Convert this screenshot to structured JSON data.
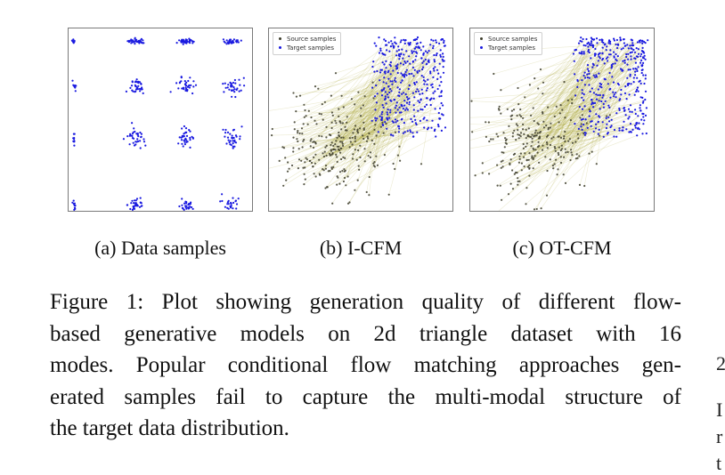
{
  "colors": {
    "source": "#3d3d2b",
    "target": "#1a1ae0",
    "path": "#a8a233",
    "border": "#7a7a7a"
  },
  "legend": {
    "source": "Source samples",
    "target": "Target samples"
  },
  "subcaptions": {
    "a": "(a) Data samples",
    "b": "(b) I-CFM",
    "c": "(c) OT-CFM"
  },
  "caption": {
    "lines": [
      "Figure 1: Plot showing generation quality of different flow-",
      "based generative models on 2d triangle dataset with 16",
      "modes. Popular conditional flow matching approaches gen-",
      "erated samples fail to capture the multi-modal structure of",
      "the target data distribution."
    ]
  },
  "edge_glyphs": [
    "2",
    "I",
    "r",
    "t"
  ],
  "chart_data": [
    {
      "type": "scatter",
      "panel": "a",
      "series": [
        {
          "name": "",
          "mode_grid": {
            "columns": [
              0.03,
              0.37,
              0.64,
              0.89
            ],
            "rows": [
              0.93,
              0.68,
              0.4,
              0.03
            ]
          },
          "modes": [
            [
              1,
              1,
              1,
              1
            ],
            [
              1,
              1,
              1,
              1
            ],
            [
              1,
              1,
              1,
              1
            ],
            [
              1,
              1,
              1,
              1
            ]
          ]
        }
      ]
    },
    {
      "type": "scatter",
      "panel": "b",
      "legend_position": "top-left",
      "series": [
        {
          "name": "Source samples",
          "distribution": "gaussian cloud, lower-left/center"
        },
        {
          "name": "Target samples",
          "distribution": "blue cluster, top-right"
        }
      ]
    },
    {
      "type": "scatter",
      "panel": "c",
      "legend_position": "top-left",
      "series": [
        {
          "name": "Source samples",
          "distribution": "gaussian cloud, lower-left/center"
        },
        {
          "name": "Target samples",
          "distribution": "blue cluster, top-right"
        }
      ]
    }
  ]
}
